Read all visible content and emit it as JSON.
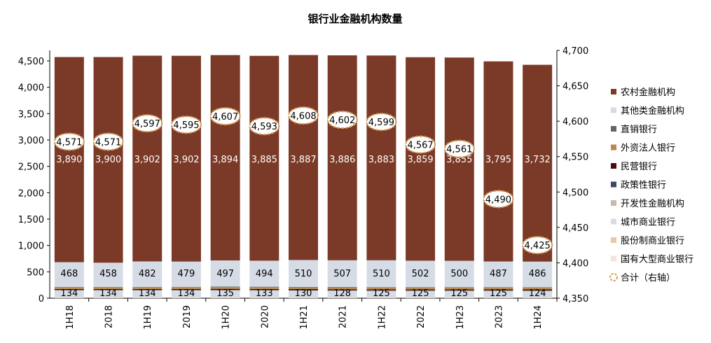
{
  "chart_data": {
    "type": "bar",
    "stacked": true,
    "title": "银行业金融机构数量",
    "categories": [
      "1H18",
      "2018",
      "1H19",
      "2019",
      "1H20",
      "2020",
      "1H21",
      "2021",
      "1H22",
      "2022",
      "1H23",
      "2023",
      "1H24"
    ],
    "ylim_left": [
      0,
      4500
    ],
    "yticks_left": [
      "0",
      "500",
      "1,000",
      "1,500",
      "2,000",
      "2,500",
      "3,000",
      "3,500",
      "4,000",
      "4,500"
    ],
    "ylim_right": [
      4350,
      4700
    ],
    "yticks_right": [
      "4,350",
      "4,400",
      "4,450",
      "4,500",
      "4,550",
      "4,600",
      "4,650",
      "4,700"
    ],
    "legend_position": "right",
    "series": [
      {
        "name": "国有大型商业银行",
        "color": "#f3e3dc",
        "values": [
          6,
          6,
          6,
          6,
          6,
          6,
          6,
          6,
          6,
          6,
          6,
          6,
          6
        ]
      },
      {
        "name": "股份制商业银行",
        "color": "#e8c9a2",
        "values": [
          12,
          12,
          12,
          12,
          12,
          12,
          12,
          12,
          12,
          12,
          12,
          12,
          12
        ]
      },
      {
        "name": "城市商业银行",
        "color": "#d6dce6",
        "values": [
          134,
          134,
          134,
          134,
          135,
          133,
          130,
          128,
          125,
          125,
          125,
          125,
          124
        ]
      },
      {
        "name": "开发性金融机构",
        "color": "#c9b8a8",
        "values": [
          2,
          2,
          2,
          2,
          2,
          2,
          2,
          2,
          2,
          2,
          2,
          2,
          2
        ]
      },
      {
        "name": "政策性银行",
        "color": "#3c4a66",
        "values": [
          3,
          3,
          3,
          3,
          3,
          3,
          3,
          3,
          3,
          3,
          3,
          3,
          3
        ]
      },
      {
        "name": "民营银行",
        "color": "#4a0c08",
        "values": [
          17,
          17,
          17,
          18,
          19,
          19,
          19,
          19,
          19,
          19,
          19,
          19,
          19
        ]
      },
      {
        "name": "外资法人银行",
        "color": "#b88a4e",
        "values": [
          41,
          41,
          41,
          41,
          41,
          41,
          41,
          41,
          41,
          41,
          41,
          41,
          41
        ]
      },
      {
        "name": "直销银行",
        "color": "#666666",
        "values": [
          0,
          0,
          0,
          0,
          1,
          1,
          1,
          1,
          1,
          1,
          1,
          1,
          1
        ]
      },
      {
        "name": "其他类金融机构",
        "color": "#d6dce6",
        "values": [
          468,
          458,
          482,
          479,
          497,
          494,
          510,
          507,
          510,
          502,
          500,
          487,
          486
        ]
      },
      {
        "name": "农村金融机构",
        "color": "#7b3a27",
        "values": [
          3890,
          3900,
          3902,
          3902,
          3894,
          3885,
          3887,
          3886,
          3883,
          3859,
          3855,
          3795,
          3732
        ]
      }
    ],
    "total_series": {
      "name": "合计（右轴）",
      "axis": "right",
      "values": [
        4571,
        4571,
        4597,
        4595,
        4607,
        4593,
        4608,
        4602,
        4599,
        4567,
        4561,
        4490,
        4425
      ]
    },
    "labels": {
      "bottom": [
        "134",
        "134",
        "134",
        "134",
        "135",
        "133",
        "130",
        "128",
        "125",
        "125",
        "125",
        "125",
        "124"
      ],
      "middle": [
        "468",
        "458",
        "482",
        "479",
        "497",
        "494",
        "510",
        "507",
        "510",
        "502",
        "500",
        "487",
        "486"
      ],
      "top": [
        "3,890",
        "3,900",
        "3,902",
        "3,902",
        "3,894",
        "3,885",
        "3,887",
        "3,886",
        "3,883",
        "3,859",
        "3,855",
        "3,795",
        "3,732"
      ],
      "total": [
        "4,571",
        "4,571",
        "4,597",
        "4,595",
        "4,607",
        "4,593",
        "4,608",
        "4,602",
        "4,599",
        "4,567",
        "4,561",
        "4,490",
        "4,425"
      ]
    }
  },
  "legend_order": [
    "农村金融机构",
    "其他类金融机构",
    "直销银行",
    "外资法人银行",
    "民营银行",
    "政策性银行",
    "开发性金融机构",
    "城市商业银行",
    "股份制商业银行",
    "国有大型商业银行",
    "合计（右轴）"
  ]
}
